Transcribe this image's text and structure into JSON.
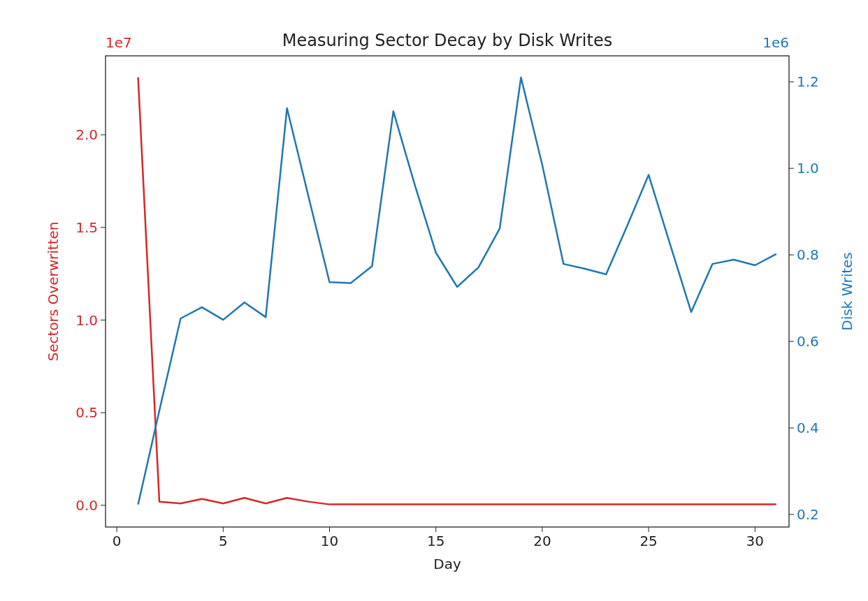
{
  "chart_data": {
    "type": "line",
    "title": "Measuring Sector Decay by Disk Writes",
    "xlabel": "Day",
    "ylabel": "Sectors Overwritten",
    "y2label": "Disk Writes",
    "x": [
      1,
      2,
      3,
      4,
      5,
      6,
      7,
      8,
      9,
      10,
      11,
      12,
      13,
      14,
      15,
      16,
      17,
      18,
      19,
      20,
      21,
      22,
      23,
      24,
      25,
      26,
      27,
      28,
      29,
      30,
      31
    ],
    "series": [
      {
        "color": "#d62728",
        "values": [
          2.31,
          0.02,
          0.01,
          0.035,
          0.01,
          0.04,
          0.01,
          0.04,
          0.02,
          0.005,
          0.005,
          0.005,
          0.005,
          0.005,
          0.005,
          0.005,
          0.005,
          0.005,
          0.005,
          0.005,
          0.005,
          0.005,
          0.005,
          0.005,
          0.005,
          0.005,
          0.005,
          0.005,
          0.005,
          0.005,
          0.005
        ]
      },
      {
        "color": "#1f77b4",
        "axis": "y2",
        "values": [
          0.223,
          0.44,
          0.653,
          0.679,
          0.65,
          0.69,
          0.656,
          1.139,
          0.937,
          0.737,
          0.735,
          0.774,
          1.132,
          0.963,
          0.805,
          0.726,
          0.771,
          0.861,
          1.21,
          1.008,
          0.779,
          0.768,
          0.755,
          0.868,
          0.985,
          0.826,
          0.668,
          0.779,
          0.789,
          0.776,
          0.802
        ]
      }
    ],
    "xlim": [
      -0.53,
      31.6
    ],
    "xticks": [
      0,
      5,
      10,
      15,
      20,
      25,
      30
    ],
    "ylim": [
      -0.117,
      2.426
    ],
    "yticks": [
      {
        "value": 0,
        "label": "0.0"
      },
      {
        "value": 0.5,
        "label": "0.5"
      },
      {
        "value": 1,
        "label": "1.0"
      },
      {
        "value": 1.5,
        "label": "1.5"
      },
      {
        "value": 2,
        "label": "2.0"
      }
    ],
    "y2lim": [
      0.171,
      1.26
    ],
    "y2ticks": [
      {
        "value": 0.2,
        "label": "0.2"
      },
      {
        "value": 0.4,
        "label": "0.4"
      },
      {
        "value": 0.6,
        "label": "0.6"
      },
      {
        "value": 0.8,
        "label": "0.8"
      },
      {
        "value": 1,
        "label": "1.0"
      },
      {
        "value": 1.2,
        "label": "1.2"
      }
    ],
    "annotations": [
      "1e7",
      "1e6"
    ],
    "grid": false,
    "marker": "none",
    "line_style": "solid"
  }
}
